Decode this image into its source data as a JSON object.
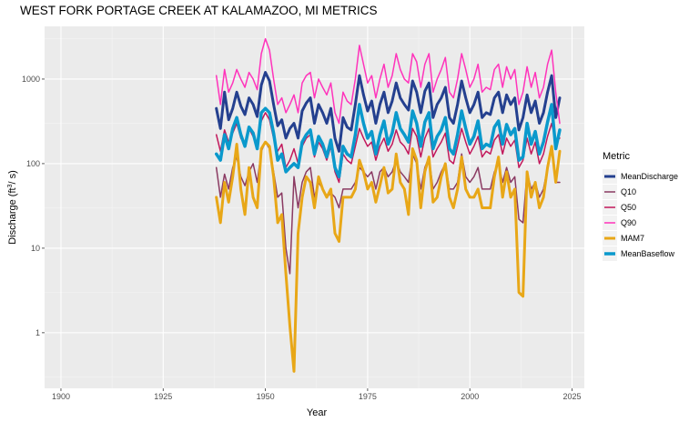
{
  "chart_data": {
    "type": "line",
    "title": "WEST FORK PORTAGE CREEK AT KALAMAZOO, MI  METRICS",
    "xlabel": "Year",
    "ylabel_prefix": "Discharge (ft",
    "ylabel_sup": "3",
    "ylabel_suffix": "/ s)",
    "y_scale": "log10",
    "xlim": [
      1896,
      2028
    ],
    "ylim": [
      0.22,
      4200
    ],
    "x_ticks": [
      1900,
      1925,
      1950,
      1975,
      2000,
      2025
    ],
    "y_ticks": [
      1,
      10,
      100,
      1000
    ],
    "grid": true,
    "legend": {
      "title": "Metric",
      "position": "right"
    },
    "x": [
      1938,
      1939,
      1940,
      1941,
      1942,
      1943,
      1944,
      1945,
      1946,
      1947,
      1948,
      1949,
      1950,
      1951,
      1952,
      1953,
      1954,
      1955,
      1956,
      1957,
      1958,
      1959,
      1960,
      1961,
      1962,
      1963,
      1964,
      1965,
      1966,
      1967,
      1968,
      1969,
      1970,
      1971,
      1972,
      1973,
      1974,
      1975,
      1976,
      1977,
      1978,
      1979,
      1980,
      1981,
      1982,
      1983,
      1984,
      1985,
      1986,
      1987,
      1988,
      1989,
      1990,
      1991,
      1992,
      1993,
      1994,
      1995,
      1996,
      1997,
      1998,
      1999,
      2000,
      2001,
      2002,
      2003,
      2004,
      2005,
      2006,
      2007,
      2008,
      2009,
      2010,
      2011,
      2012,
      2013,
      2014,
      2015,
      2016,
      2017,
      2018,
      2019,
      2020,
      2021,
      2022
    ],
    "series": [
      {
        "name": "MeanDischarge",
        "color": "#24408f",
        "width": 3,
        "values": [
          450,
          260,
          700,
          330,
          450,
          700,
          480,
          380,
          600,
          500,
          360,
          850,
          1200,
          950,
          500,
          280,
          330,
          200,
          260,
          300,
          200,
          420,
          520,
          600,
          300,
          500,
          400,
          300,
          450,
          200,
          140,
          350,
          270,
          250,
          500,
          1100,
          650,
          420,
          550,
          300,
          500,
          700,
          400,
          550,
          900,
          600,
          500,
          430,
          950,
          700,
          400,
          720,
          900,
          350,
          500,
          600,
          800,
          350,
          300,
          500,
          950,
          600,
          400,
          500,
          700,
          350,
          400,
          380,
          600,
          700,
          400,
          650,
          500,
          600,
          250,
          350,
          650,
          400,
          550,
          300,
          400,
          700,
          1100,
          350,
          600
        ]
      },
      {
        "name": "Q10",
        "color": "#8b3a62",
        "width": 1.5,
        "values": [
          90,
          40,
          75,
          50,
          90,
          120,
          70,
          55,
          80,
          100,
          60,
          140,
          180,
          150,
          80,
          40,
          45,
          10,
          5,
          70,
          30,
          60,
          80,
          90,
          40,
          60,
          50,
          40,
          45,
          40,
          30,
          50,
          50,
          50,
          60,
          90,
          80,
          70,
          80,
          50,
          80,
          90,
          70,
          80,
          110,
          80,
          70,
          60,
          130,
          100,
          50,
          90,
          120,
          50,
          60,
          80,
          100,
          50,
          50,
          60,
          130,
          70,
          60,
          70,
          90,
          50,
          50,
          50,
          80,
          100,
          60,
          90,
          60,
          70,
          22,
          20,
          80,
          50,
          60,
          40,
          50,
          90,
          150,
          60,
          60
        ]
      },
      {
        "name": "Q50",
        "color": "#c2185b",
        "width": 1.5,
        "values": [
          220,
          140,
          250,
          180,
          230,
          300,
          200,
          170,
          260,
          210,
          160,
          320,
          400,
          330,
          200,
          140,
          170,
          90,
          110,
          150,
          100,
          160,
          200,
          220,
          120,
          180,
          150,
          110,
          160,
          80,
          60,
          130,
          110,
          100,
          160,
          260,
          200,
          160,
          180,
          110,
          160,
          200,
          140,
          170,
          250,
          180,
          160,
          130,
          260,
          210,
          120,
          200,
          260,
          120,
          150,
          180,
          230,
          110,
          100,
          160,
          260,
          180,
          130,
          160,
          210,
          120,
          140,
          130,
          190,
          220,
          130,
          200,
          160,
          190,
          90,
          110,
          200,
          130,
          180,
          100,
          130,
          210,
          300,
          180,
          200
        ]
      },
      {
        "name": "Q90",
        "color": "#ff33bb",
        "width": 1.5,
        "values": [
          1100,
          500,
          1300,
          700,
          900,
          1300,
          1000,
          800,
          1200,
          1000,
          750,
          2000,
          3000,
          2200,
          1000,
          500,
          600,
          400,
          500,
          650,
          400,
          900,
          1100,
          1200,
          600,
          1000,
          800,
          650,
          900,
          400,
          300,
          700,
          550,
          500,
          1000,
          2500,
          1500,
          900,
          1100,
          600,
          1000,
          1500,
          800,
          1100,
          2000,
          1300,
          1000,
          900,
          2000,
          1600,
          800,
          1500,
          2000,
          700,
          1000,
          1300,
          1800,
          700,
          600,
          1000,
          2000,
          1300,
          800,
          1000,
          1500,
          700,
          800,
          750,
          1300,
          1500,
          800,
          1400,
          1000,
          1300,
          500,
          700,
          1400,
          800,
          1200,
          600,
          800,
          1500,
          2200,
          700,
          300
        ]
      },
      {
        "name": "MAM7",
        "color": "#e8a717",
        "width": 3,
        "values": [
          40,
          20,
          60,
          35,
          70,
          170,
          50,
          25,
          90,
          40,
          30,
          150,
          180,
          160,
          70,
          20,
          25,
          5,
          1.2,
          0.35,
          15,
          40,
          70,
          60,
          30,
          70,
          50,
          40,
          50,
          15,
          12,
          40,
          40,
          40,
          50,
          110,
          80,
          50,
          60,
          35,
          55,
          90,
          45,
          50,
          130,
          60,
          50,
          25,
          150,
          110,
          30,
          80,
          120,
          35,
          40,
          70,
          100,
          40,
          30,
          50,
          120,
          50,
          40,
          40,
          50,
          30,
          30,
          30,
          70,
          120,
          40,
          80,
          40,
          50,
          3,
          2.7,
          80,
          40,
          60,
          30,
          40,
          90,
          160,
          60,
          140
        ]
      },
      {
        "name": "MeanBaseflow",
        "color": "#0a99cc",
        "width": 3.5,
        "values": [
          130,
          110,
          220,
          150,
          260,
          350,
          220,
          160,
          270,
          230,
          150,
          400,
          450,
          400,
          230,
          110,
          130,
          80,
          90,
          100,
          90,
          180,
          220,
          250,
          130,
          210,
          170,
          120,
          190,
          90,
          70,
          160,
          130,
          120,
          220,
          500,
          300,
          200,
          240,
          130,
          220,
          320,
          170,
          230,
          400,
          260,
          220,
          180,
          420,
          300,
          160,
          310,
          400,
          150,
          210,
          250,
          350,
          150,
          130,
          220,
          420,
          260,
          170,
          210,
          320,
          150,
          170,
          160,
          270,
          320,
          170,
          290,
          220,
          260,
          110,
          120,
          300,
          170,
          240,
          130,
          180,
          310,
          500,
          150,
          250
        ]
      }
    ]
  }
}
